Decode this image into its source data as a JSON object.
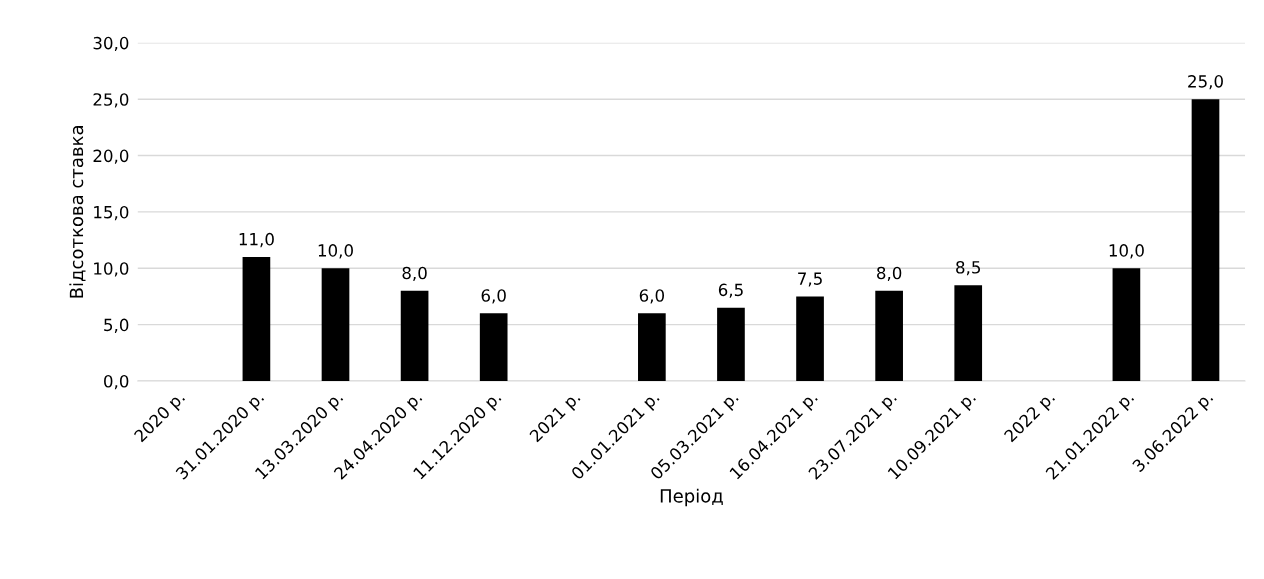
{
  "chart_data": {
    "type": "bar",
    "xlabel": "Період",
    "ylabel": "Відсоткова ставка",
    "categories": [
      "2020 р.",
      "31.01.2020 р.",
      "13.03.2020 р.",
      "24.04.2020 р.",
      "11.12.2020 р.",
      "2021 р.",
      "01.01.2021 р.",
      "05.03.2021 р.",
      "16.04.2021 р.",
      "23.07.2021 р.",
      "10.09.2021 р.",
      "2022 р.",
      "21.01.2022 р.",
      "3.06.2022 р."
    ],
    "values": [
      null,
      11.0,
      10.0,
      8.0,
      6.0,
      null,
      6.0,
      6.5,
      7.5,
      8.0,
      8.5,
      null,
      10.0,
      25.0
    ],
    "value_labels": [
      null,
      "11,0",
      "10,0",
      "8,0",
      "6,0",
      null,
      "6,0",
      "6,5",
      "7,5",
      "8,0",
      "8,5",
      null,
      "10,0",
      "25,0"
    ],
    "color": "#000000",
    "ylim": [
      0,
      30
    ],
    "yticks": [
      {
        "value": 0,
        "label": "0,0"
      },
      {
        "value": 5,
        "label": "5,0"
      },
      {
        "value": 10,
        "label": "10,0"
      },
      {
        "value": 15,
        "label": "15,0"
      },
      {
        "value": 20,
        "label": "20,0"
      },
      {
        "value": 25,
        "label": "25,0"
      },
      {
        "value": 30,
        "label": "30,0"
      }
    ],
    "grid": "y",
    "legend": false
  }
}
